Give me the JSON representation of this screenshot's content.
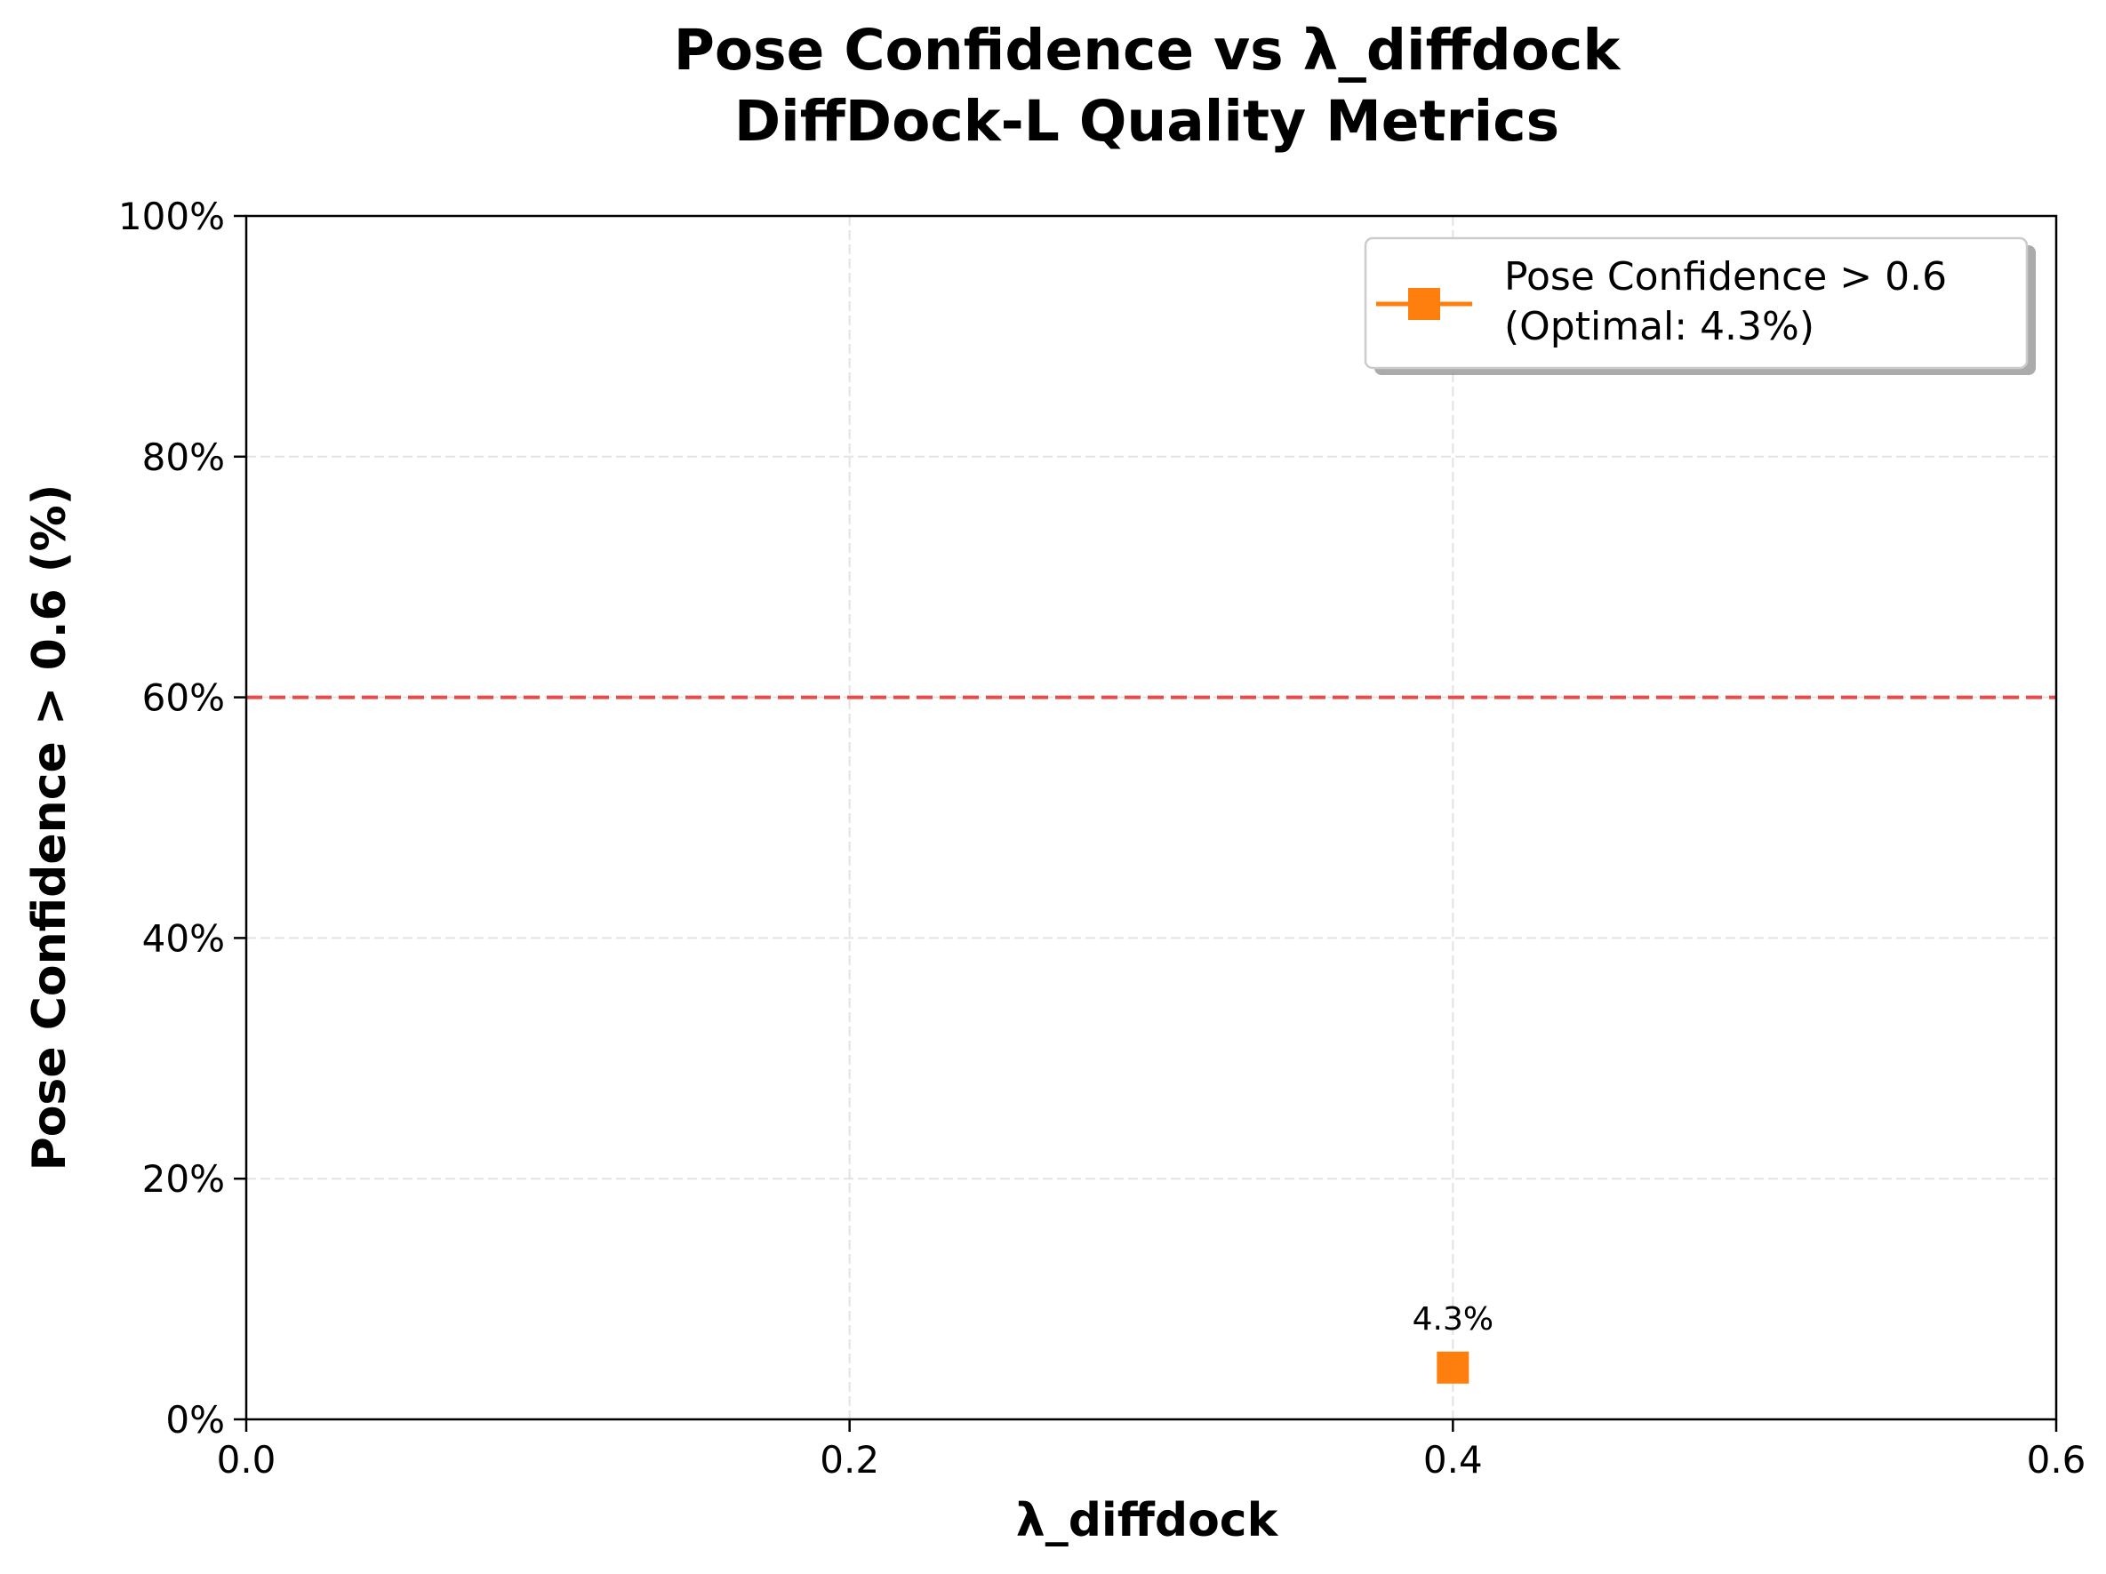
{
  "chart_data": {
    "type": "scatter",
    "title": "Pose Confidence vs λ_diffdock",
    "subtitle": "DiffDock-L Quality Metrics",
    "xlabel": "λ_diffdock",
    "ylabel": "Pose Confidence > 0.6 (%)",
    "xlim": [
      0.0,
      0.6
    ],
    "ylim": [
      0,
      100
    ],
    "x_ticks": [
      0.0,
      0.2,
      0.4,
      0.6
    ],
    "x_tick_labels": [
      "0.0",
      "0.2",
      "0.4",
      "0.6"
    ],
    "y_ticks": [
      0,
      20,
      40,
      60,
      80,
      100
    ],
    "y_tick_labels": [
      "0%",
      "20%",
      "40%",
      "60%",
      "80%",
      "100%"
    ],
    "grid": true,
    "reference_line": {
      "y": 60,
      "color": "#e8413f",
      "style": "dashed"
    },
    "series": [
      {
        "name": "Pose Confidence > 0.6",
        "name_line2": "(Optimal: 4.3%)",
        "color": "#ff7f0e",
        "marker": "square",
        "points": [
          {
            "x": 0.4,
            "y": 4.3,
            "label": "4.3%"
          }
        ]
      }
    ],
    "legend_position": "top-right"
  }
}
